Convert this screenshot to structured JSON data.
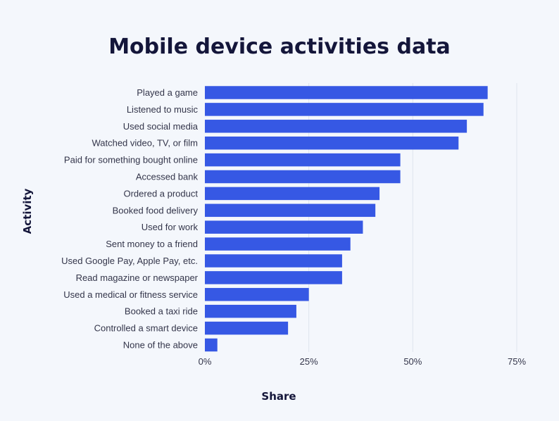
{
  "chart_data": {
    "type": "bar",
    "orientation": "horizontal",
    "title": "Mobile device activities data",
    "xlabel": "Share",
    "ylabel": "Activity",
    "categories": [
      "Played a game",
      "Listened to music",
      "Used social media",
      "Watched video, TV, or film",
      "Paid for something bought online",
      "Accessed bank",
      "Ordered a product",
      "Booked food delivery",
      "Used for work",
      "Sent money to a friend",
      "Used Google Pay, Apple Pay, etc.",
      "Read magazine or newspaper",
      "Used a medical or fitness service",
      "Booked a taxi ride",
      "Controlled a smart device",
      "None of the above"
    ],
    "values": [
      68,
      67,
      63,
      61,
      47,
      47,
      42,
      41,
      38,
      35,
      33,
      33,
      25,
      22,
      20,
      3
    ],
    "xlim": [
      0,
      75
    ],
    "xticks": [
      0,
      25,
      50,
      75
    ],
    "xtick_labels": [
      "0%",
      "25%",
      "50%",
      "75%"
    ],
    "bar_color": "#3658e4",
    "grid": "vertical"
  }
}
